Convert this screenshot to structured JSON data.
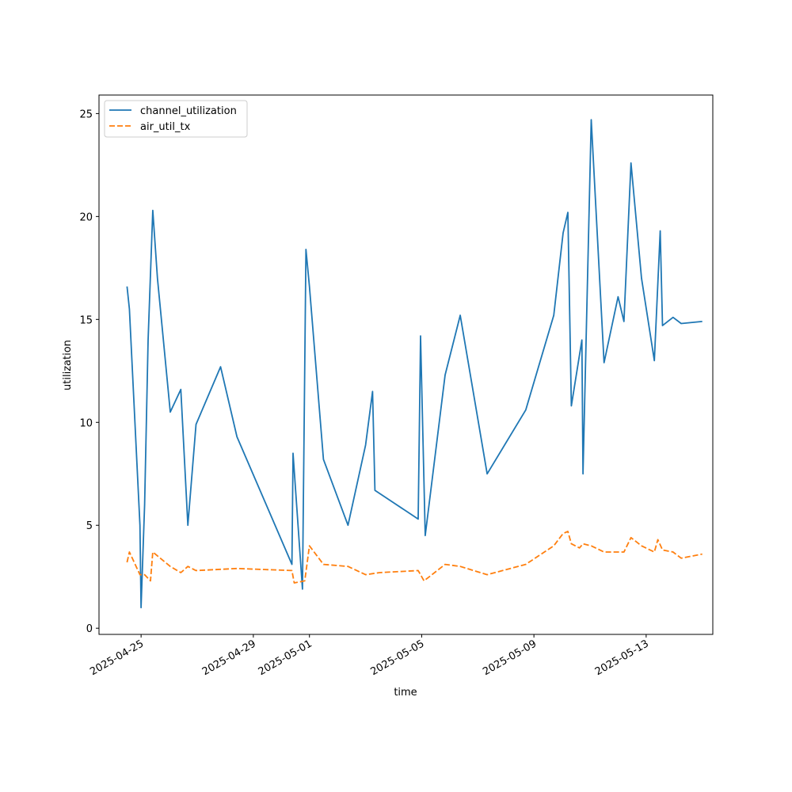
{
  "chart_data": {
    "type": "line",
    "xlabel": "time",
    "ylabel": "utilization",
    "x_ticks": [
      "2025-04-25",
      "2025-04-29",
      "2025-05-01",
      "2025-05-05",
      "2025-05-09",
      "2025-05-13"
    ],
    "y_ticks": [
      "0",
      "5",
      "10",
      "15",
      "20",
      "25"
    ],
    "xlim": [
      "2025-04-23T12:00",
      "2025-05-15T09:00"
    ],
    "ylim": [
      -0.3,
      25.9
    ],
    "grid": false,
    "legend_position": "top-left",
    "series": [
      {
        "name": "channel_utilization",
        "color": "#1f77b4",
        "style": "solid",
        "points": [
          [
            "2025-04-24T12:00",
            16.6
          ],
          [
            "2025-04-24T14:00",
            15.5
          ],
          [
            "2025-04-24T23:00",
            5.0
          ],
          [
            "2025-04-25T00:00",
            1.0
          ],
          [
            "2025-04-25T03:00",
            6.0
          ],
          [
            "2025-04-25T06:00",
            14.0
          ],
          [
            "2025-04-25T10:00",
            20.3
          ],
          [
            "2025-04-25T14:00",
            17.0
          ],
          [
            "2025-04-26T01:00",
            10.5
          ],
          [
            "2025-04-26T10:00",
            11.6
          ],
          [
            "2025-04-26T16:00",
            5.0
          ],
          [
            "2025-04-26T23:00",
            9.9
          ],
          [
            "2025-04-27T20:00",
            12.7
          ],
          [
            "2025-04-28T10:00",
            9.3
          ],
          [
            "2025-04-30T09:00",
            3.1
          ],
          [
            "2025-04-30T10:00",
            8.5
          ],
          [
            "2025-04-30T18:00",
            1.9
          ],
          [
            "2025-04-30T21:00",
            18.4
          ],
          [
            "2025-05-01T00:00",
            16.6
          ],
          [
            "2025-05-01T12:00",
            8.2
          ],
          [
            "2025-05-02T09:00",
            5.0
          ],
          [
            "2025-05-03T00:00",
            8.9
          ],
          [
            "2025-05-03T06:00",
            11.5
          ],
          [
            "2025-05-03T08:00",
            6.7
          ],
          [
            "2025-05-04T21:00",
            5.3
          ],
          [
            "2025-05-04T23:00",
            14.2
          ],
          [
            "2025-05-05T03:00",
            4.5
          ],
          [
            "2025-05-05T20:00",
            12.3
          ],
          [
            "2025-05-06T09:00",
            15.2
          ],
          [
            "2025-05-07T08:00",
            7.5
          ],
          [
            "2025-05-08T17:00",
            10.6
          ],
          [
            "2025-05-09T17:00",
            15.2
          ],
          [
            "2025-05-10T01:00",
            19.2
          ],
          [
            "2025-05-10T05:00",
            20.2
          ],
          [
            "2025-05-10T08:00",
            10.8
          ],
          [
            "2025-05-10T17:00",
            14.0
          ],
          [
            "2025-05-10T18:00",
            7.5
          ],
          [
            "2025-05-11T01:00",
            24.7
          ],
          [
            "2025-05-11T12:00",
            12.9
          ],
          [
            "2025-05-12T00:00",
            16.1
          ],
          [
            "2025-05-12T05:00",
            14.9
          ],
          [
            "2025-05-12T11:00",
            22.6
          ],
          [
            "2025-05-12T20:00",
            17.0
          ],
          [
            "2025-05-13T07:00",
            13.0
          ],
          [
            "2025-05-13T12:00",
            19.3
          ],
          [
            "2025-05-13T14:00",
            14.7
          ],
          [
            "2025-05-13T23:00",
            15.1
          ],
          [
            "2025-05-14T06:00",
            14.8
          ],
          [
            "2025-05-15T00:00",
            14.9
          ]
        ]
      },
      {
        "name": "air_util_tx",
        "color": "#ff7f0e",
        "style": "dashed",
        "points": [
          [
            "2025-04-24T12:00",
            3.2
          ],
          [
            "2025-04-24T14:00",
            3.7
          ],
          [
            "2025-04-24T23:00",
            2.6
          ],
          [
            "2025-04-25T03:00",
            2.6
          ],
          [
            "2025-04-25T08:00",
            2.3
          ],
          [
            "2025-04-25T10:00",
            3.7
          ],
          [
            "2025-04-26T01:00",
            3.0
          ],
          [
            "2025-04-26T10:00",
            2.7
          ],
          [
            "2025-04-26T16:00",
            3.0
          ],
          [
            "2025-04-26T23:00",
            2.8
          ],
          [
            "2025-04-28T10:00",
            2.9
          ],
          [
            "2025-04-30T09:00",
            2.8
          ],
          [
            "2025-04-30T11:00",
            2.2
          ],
          [
            "2025-04-30T20:00",
            2.3
          ],
          [
            "2025-05-01T00:00",
            4.0
          ],
          [
            "2025-05-01T12:00",
            3.1
          ],
          [
            "2025-05-02T09:00",
            3.0
          ],
          [
            "2025-05-03T00:00",
            2.6
          ],
          [
            "2025-05-03T12:00",
            2.7
          ],
          [
            "2025-05-04T21:00",
            2.8
          ],
          [
            "2025-05-05T02:00",
            2.3
          ],
          [
            "2025-05-05T20:00",
            3.1
          ],
          [
            "2025-05-06T09:00",
            3.0
          ],
          [
            "2025-05-07T08:00",
            2.6
          ],
          [
            "2025-05-08T17:00",
            3.1
          ],
          [
            "2025-05-09T17:00",
            4.0
          ],
          [
            "2025-05-10T01:00",
            4.6
          ],
          [
            "2025-05-10T05:00",
            4.7
          ],
          [
            "2025-05-10T08:00",
            4.1
          ],
          [
            "2025-05-10T15:00",
            3.9
          ],
          [
            "2025-05-10T18:00",
            4.1
          ],
          [
            "2025-05-11T01:00",
            4.0
          ],
          [
            "2025-05-11T12:00",
            3.7
          ],
          [
            "2025-05-12T05:00",
            3.7
          ],
          [
            "2025-05-12T11:00",
            4.4
          ],
          [
            "2025-05-12T20:00",
            4.0
          ],
          [
            "2025-05-13T07:00",
            3.7
          ],
          [
            "2025-05-13T10:00",
            4.3
          ],
          [
            "2025-05-13T14:00",
            3.8
          ],
          [
            "2025-05-13T23:00",
            3.7
          ],
          [
            "2025-05-14T06:00",
            3.4
          ],
          [
            "2025-05-15T00:00",
            3.6
          ]
        ]
      }
    ]
  }
}
